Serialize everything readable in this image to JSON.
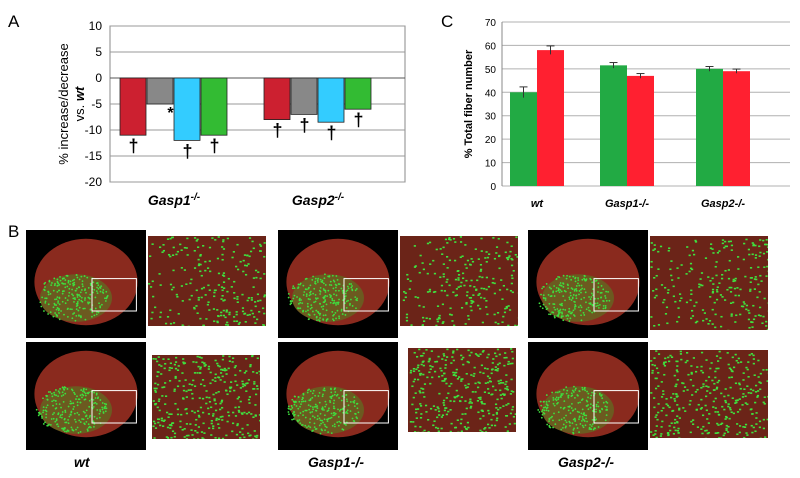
{
  "panels": {
    "a": "A",
    "b": "B",
    "c": "C"
  },
  "chart_data": [
    {
      "type": "bar",
      "panel": "A",
      "ylabel_line1": "% increase/decrease",
      "ylabel_line2_prefix": "vs. ",
      "ylabel_line2_italic": "wt",
      "ylim": [
        -20,
        10
      ],
      "yticks": [
        "10",
        "5",
        "0",
        "-5",
        "-10",
        "-15",
        "-20"
      ],
      "grid": true,
      "groups": [
        {
          "name": "Gasp1",
          "superscript": "-/-",
          "values": [
            -11,
            -5,
            -12,
            -11
          ],
          "colors": [
            "#cc2030",
            "#888888",
            "#33ccff",
            "#33bb33"
          ],
          "marks": [
            "†",
            "*",
            "†",
            "†"
          ]
        },
        {
          "name": "Gasp2",
          "superscript": "-/-",
          "values": [
            -8,
            -7,
            -8.5,
            -6
          ],
          "colors": [
            "#cc2030",
            "#888888",
            "#33ccff",
            "#33bb33"
          ],
          "marks": [
            "†",
            "†",
            "†",
            "†"
          ]
        }
      ]
    },
    {
      "type": "bar",
      "panel": "C",
      "ylabel": "% Total fiber number",
      "ylim": [
        0,
        70
      ],
      "yticks": [
        "70",
        "60",
        "50",
        "40",
        "30",
        "20",
        "10",
        "0"
      ],
      "categories": [
        "wt",
        "Gasp1-/-",
        "Gasp2-/-"
      ],
      "series": [
        {
          "values": [
            40,
            51.5,
            50
          ],
          "errors": [
            2.3,
            1.2,
            1.0
          ],
          "color": "#22aa44"
        },
        {
          "values": [
            58,
            47,
            49
          ],
          "errors": [
            1.8,
            1.0,
            0.9
          ],
          "color": "#ff2030"
        }
      ],
      "grid": true
    }
  ],
  "micrographs": {
    "captions": [
      "wt",
      "Gasp1-/-",
      "Gasp2-/-"
    ]
  }
}
